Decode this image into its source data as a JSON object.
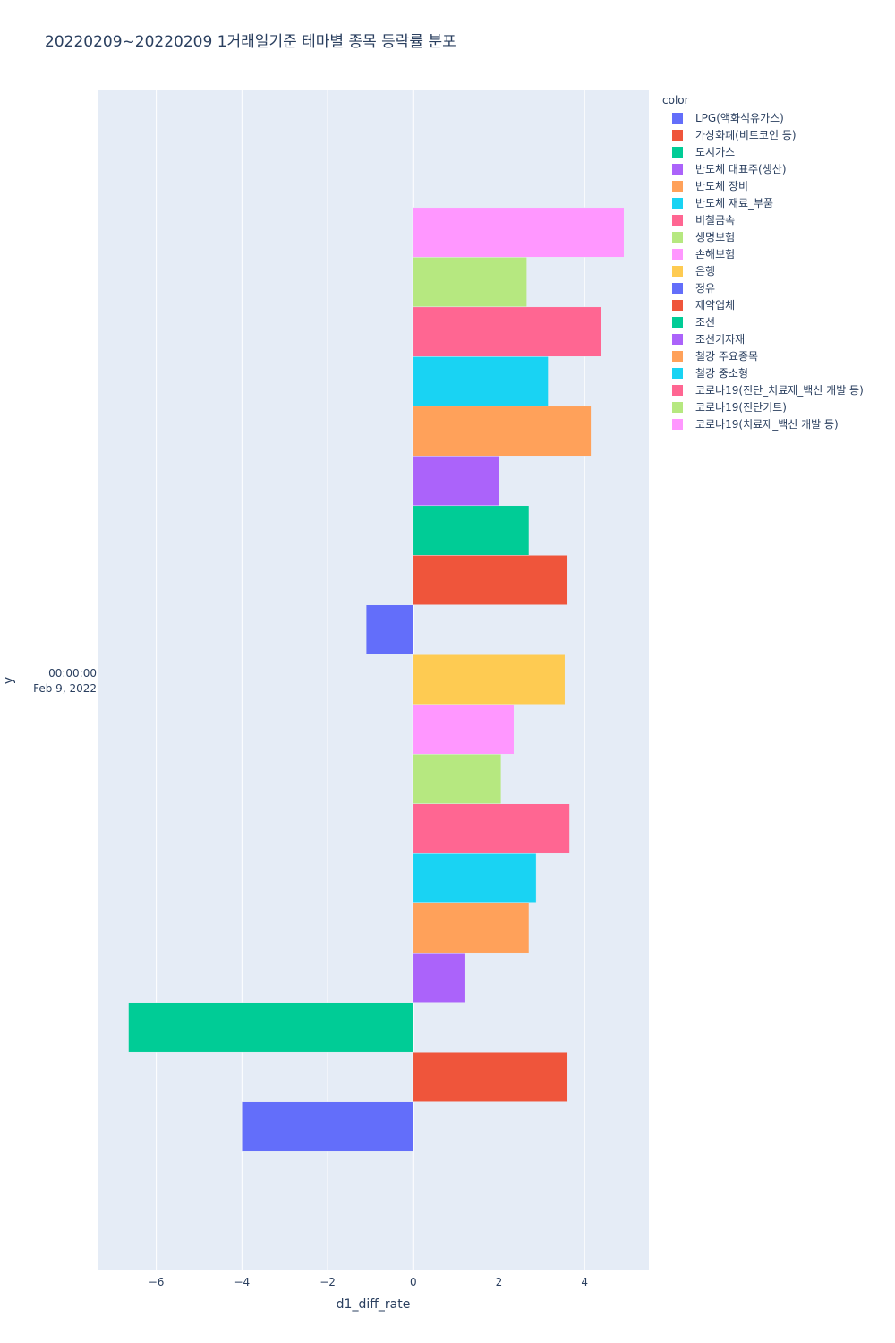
{
  "chart_data": {
    "type": "bar",
    "orientation": "horizontal",
    "barmode": "group",
    "title": "20220209~20220209 1거래일기준 테마별 종목 등락률 분포",
    "xlabel": "d1_diff_rate",
    "ylabel": "y",
    "xlim": [
      -7.35,
      5.5
    ],
    "x_ticks": [
      -6,
      -4,
      -2,
      0,
      2,
      4
    ],
    "x_tick_labels": [
      "−6",
      "−4",
      "−2",
      "0",
      "2",
      "4"
    ],
    "y_category_line1": "00:00:00",
    "y_category_line2": "Feb 9, 2022",
    "grid": true,
    "legend_title": "color",
    "legend_position": "right",
    "series": [
      {
        "name": "LPG(액화석유가스)",
        "color": "#636efa",
        "value": -4.0
      },
      {
        "name": "가상화폐(비트코인 등)",
        "color": "#EF553B",
        "value": 3.6
      },
      {
        "name": "도시가스",
        "color": "#00cc96",
        "value": -6.65
      },
      {
        "name": "반도체 대표주(생산)",
        "color": "#ab63fa",
        "value": 1.2
      },
      {
        "name": "반도체 장비",
        "color": "#FFA15A",
        "value": 2.7
      },
      {
        "name": "반도체 재료_부품",
        "color": "#19d3f3",
        "value": 2.87
      },
      {
        "name": "비철금속",
        "color": "#FF6692",
        "value": 3.65
      },
      {
        "name": "생명보험",
        "color": "#B6E880",
        "value": 2.05
      },
      {
        "name": "손해보험",
        "color": "#FF97FF",
        "value": 2.35
      },
      {
        "name": "은행",
        "color": "#FECB52",
        "value": 3.54
      },
      {
        "name": "정유",
        "color": "#636efa",
        "value": -1.1
      },
      {
        "name": "제약업체",
        "color": "#EF553B",
        "value": 3.6
      },
      {
        "name": "조선",
        "color": "#00cc96",
        "value": 2.7
      },
      {
        "name": "조선기자재",
        "color": "#ab63fa",
        "value": 2.0
      },
      {
        "name": "철강 주요종목",
        "color": "#FFA15A",
        "value": 4.15
      },
      {
        "name": "철강 중소형",
        "color": "#19d3f3",
        "value": 3.15
      },
      {
        "name": "코로나19(진단_치료제_백신 개발 등)",
        "color": "#FF6692",
        "value": 4.38
      },
      {
        "name": "코로나19(진단키트)",
        "color": "#B6E880",
        "value": 2.65
      },
      {
        "name": "코로나19(치료제_백신 개발 등)",
        "color": "#FF97FF",
        "value": 4.92
      }
    ]
  }
}
